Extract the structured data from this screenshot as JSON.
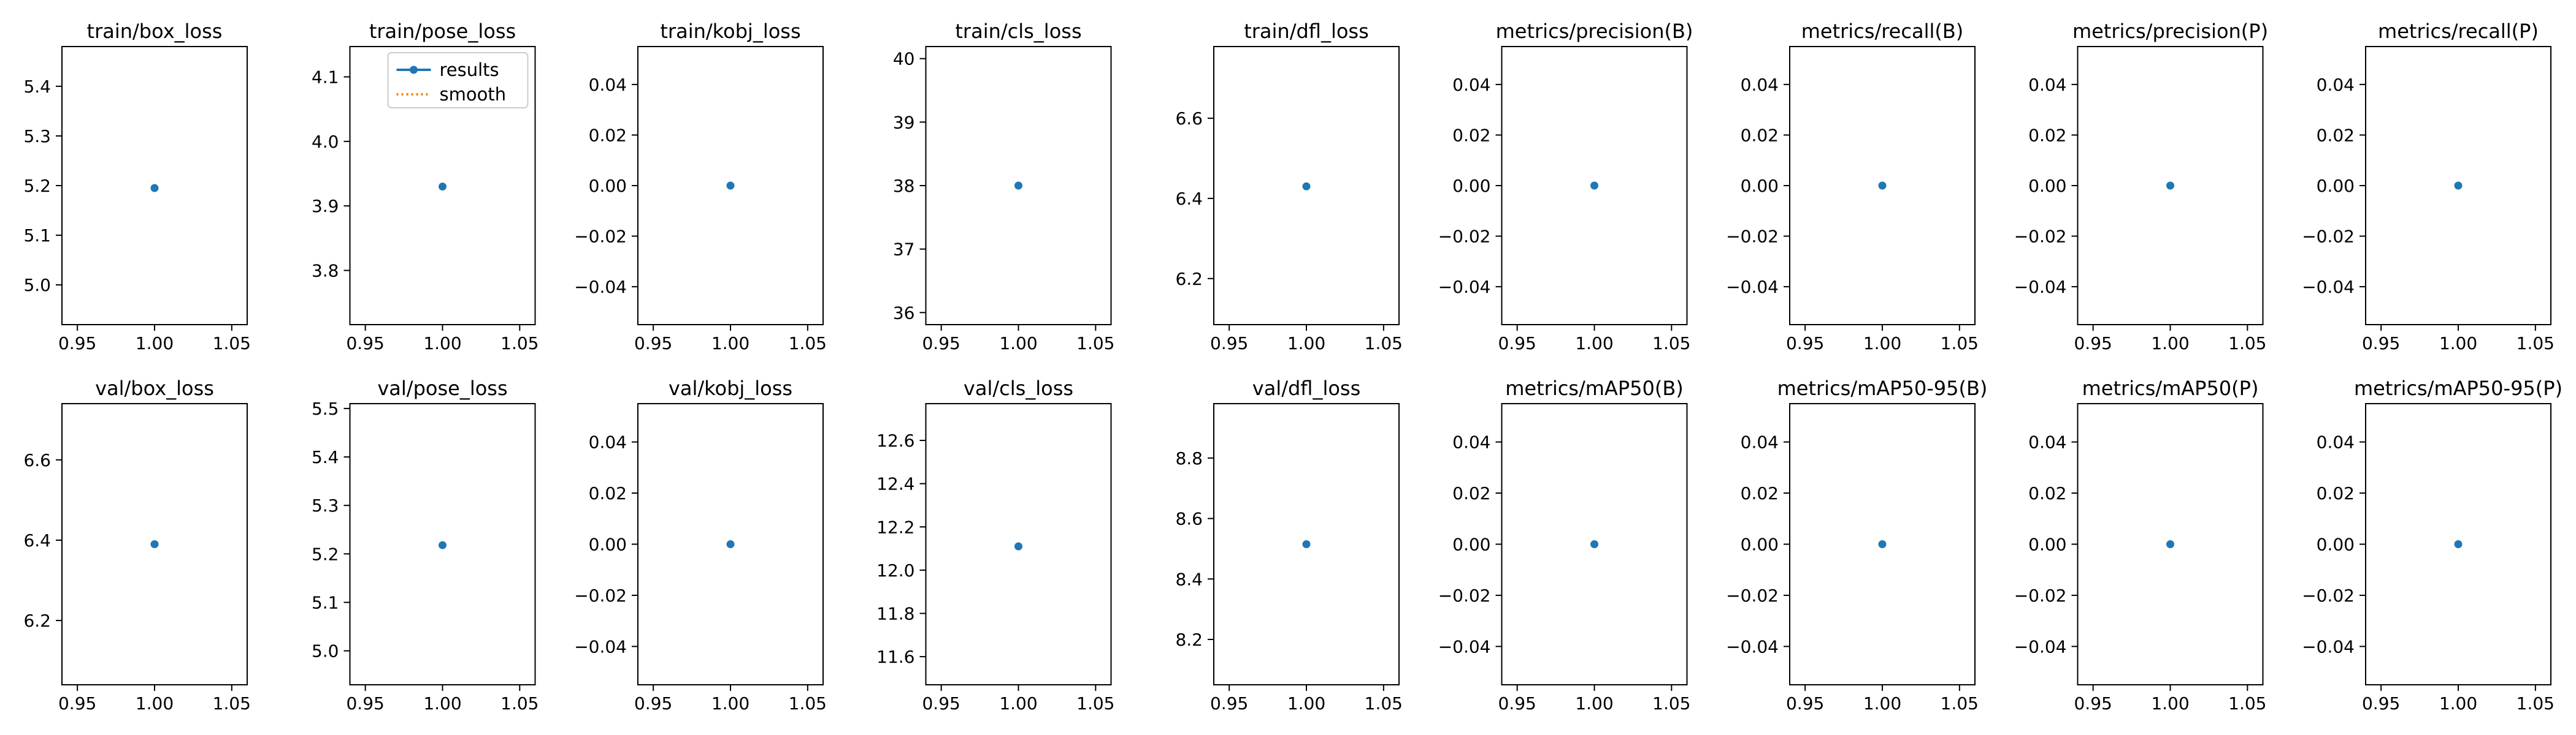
{
  "colors": {
    "results": "#1f77b4",
    "smooth": "#ff7f0e",
    "axis": "#000000"
  },
  "legend": {
    "placement": "top-right",
    "panel_index": 1,
    "entries": [
      "results",
      "smooth"
    ]
  },
  "chart_data": [
    {
      "type": "scatter",
      "title": "train/box_loss",
      "x": [
        1.0
      ],
      "series": [
        {
          "name": "results",
          "values": [
            5.195
          ]
        }
      ],
      "xlim": [
        0.94,
        1.06
      ],
      "ylim": [
        4.92,
        5.48
      ],
      "xticks": [
        "0.95",
        "1.00",
        "1.05"
      ],
      "yticks": [
        {
          "v": 5.0,
          "label": "5.0"
        },
        {
          "v": 5.1,
          "label": "5.1"
        },
        {
          "v": 5.2,
          "label": "5.2"
        },
        {
          "v": 5.3,
          "label": "5.3"
        },
        {
          "v": 5.4,
          "label": "5.4"
        }
      ]
    },
    {
      "type": "scatter",
      "title": "train/pose_loss",
      "x": [
        1.0
      ],
      "series": [
        {
          "name": "results",
          "values": [
            3.93
          ]
        }
      ],
      "xlim": [
        0.94,
        1.06
      ],
      "ylim": [
        3.716,
        4.147
      ],
      "xticks": [
        "0.95",
        "1.00",
        "1.05"
      ],
      "yticks": [
        {
          "v": 3.8,
          "label": "3.8"
        },
        {
          "v": 3.9,
          "label": "3.9"
        },
        {
          "v": 4.0,
          "label": "4.0"
        },
        {
          "v": 4.1,
          "label": "4.1"
        }
      ]
    },
    {
      "type": "scatter",
      "title": "train/kobj_loss",
      "x": [
        1.0
      ],
      "series": [
        {
          "name": "results",
          "values": [
            0.0
          ]
        }
      ],
      "xlim": [
        0.94,
        1.06
      ],
      "ylim": [
        -0.055,
        0.055
      ],
      "xticks": [
        "0.95",
        "1.00",
        "1.05"
      ],
      "yticks": [
        {
          "v": -0.04,
          "label": "−0.04"
        },
        {
          "v": -0.02,
          "label": "−0.02"
        },
        {
          "v": 0.0,
          "label": "0.00"
        },
        {
          "v": 0.02,
          "label": "0.02"
        },
        {
          "v": 0.04,
          "label": "0.04"
        }
      ]
    },
    {
      "type": "scatter",
      "title": "train/cls_loss",
      "x": [
        1.0
      ],
      "series": [
        {
          "name": "results",
          "values": [
            38.0
          ]
        }
      ],
      "xlim": [
        0.94,
        1.06
      ],
      "ylim": [
        35.81,
        40.19
      ],
      "xticks": [
        "0.95",
        "1.00",
        "1.05"
      ],
      "yticks": [
        {
          "v": 36,
          "label": "36"
        },
        {
          "v": 37,
          "label": "37"
        },
        {
          "v": 38,
          "label": "38"
        },
        {
          "v": 39,
          "label": "39"
        },
        {
          "v": 40,
          "label": "40"
        }
      ]
    },
    {
      "type": "scatter",
      "title": "train/dfl_loss",
      "x": [
        1.0
      ],
      "series": [
        {
          "name": "results",
          "values": [
            6.43
          ]
        }
      ],
      "xlim": [
        0.94,
        1.06
      ],
      "ylim": [
        6.085,
        6.779
      ],
      "xticks": [
        "0.95",
        "1.00",
        "1.05"
      ],
      "yticks": [
        {
          "v": 6.2,
          "label": "6.2"
        },
        {
          "v": 6.4,
          "label": "6.4"
        },
        {
          "v": 6.6,
          "label": "6.6"
        }
      ]
    },
    {
      "type": "scatter",
      "title": "metrics/precision(B)",
      "x": [
        1.0
      ],
      "series": [
        {
          "name": "results",
          "values": [
            0.0
          ]
        }
      ],
      "xlim": [
        0.94,
        1.06
      ],
      "ylim": [
        -0.055,
        0.055
      ],
      "xticks": [
        "0.95",
        "1.00",
        "1.05"
      ],
      "yticks": [
        {
          "v": -0.04,
          "label": "−0.04"
        },
        {
          "v": -0.02,
          "label": "−0.02"
        },
        {
          "v": 0.0,
          "label": "0.00"
        },
        {
          "v": 0.02,
          "label": "0.02"
        },
        {
          "v": 0.04,
          "label": "0.04"
        }
      ]
    },
    {
      "type": "scatter",
      "title": "metrics/recall(B)",
      "x": [
        1.0
      ],
      "series": [
        {
          "name": "results",
          "values": [
            0.0
          ]
        }
      ],
      "xlim": [
        0.94,
        1.06
      ],
      "ylim": [
        -0.055,
        0.055
      ],
      "xticks": [
        "0.95",
        "1.00",
        "1.05"
      ],
      "yticks": [
        {
          "v": -0.04,
          "label": "−0.04"
        },
        {
          "v": -0.02,
          "label": "−0.02"
        },
        {
          "v": 0.0,
          "label": "0.00"
        },
        {
          "v": 0.02,
          "label": "0.02"
        },
        {
          "v": 0.04,
          "label": "0.04"
        }
      ]
    },
    {
      "type": "scatter",
      "title": "metrics/precision(P)",
      "x": [
        1.0
      ],
      "series": [
        {
          "name": "results",
          "values": [
            0.0
          ]
        }
      ],
      "xlim": [
        0.94,
        1.06
      ],
      "ylim": [
        -0.055,
        0.055
      ],
      "xticks": [
        "0.95",
        "1.00",
        "1.05"
      ],
      "yticks": [
        {
          "v": -0.04,
          "label": "−0.04"
        },
        {
          "v": -0.02,
          "label": "−0.02"
        },
        {
          "v": 0.0,
          "label": "0.00"
        },
        {
          "v": 0.02,
          "label": "0.02"
        },
        {
          "v": 0.04,
          "label": "0.04"
        }
      ]
    },
    {
      "type": "scatter",
      "title": "metrics/recall(P)",
      "x": [
        1.0
      ],
      "series": [
        {
          "name": "results",
          "values": [
            0.0
          ]
        }
      ],
      "xlim": [
        0.94,
        1.06
      ],
      "ylim": [
        -0.055,
        0.055
      ],
      "xticks": [
        "0.95",
        "1.00",
        "1.05"
      ],
      "yticks": [
        {
          "v": -0.04,
          "label": "−0.04"
        },
        {
          "v": -0.02,
          "label": "−0.02"
        },
        {
          "v": 0.0,
          "label": "0.00"
        },
        {
          "v": 0.02,
          "label": "0.02"
        },
        {
          "v": 0.04,
          "label": "0.04"
        }
      ]
    },
    {
      "type": "scatter",
      "title": "val/box_loss",
      "x": [
        1.0
      ],
      "series": [
        {
          "name": "results",
          "values": [
            6.39
          ]
        }
      ],
      "xlim": [
        0.94,
        1.06
      ],
      "ylim": [
        6.04,
        6.74
      ],
      "xticks": [
        "0.95",
        "1.00",
        "1.05"
      ],
      "yticks": [
        {
          "v": 6.2,
          "label": "6.2"
        },
        {
          "v": 6.4,
          "label": "6.4"
        },
        {
          "v": 6.6,
          "label": "6.6"
        }
      ]
    },
    {
      "type": "scatter",
      "title": "val/pose_loss",
      "x": [
        1.0
      ],
      "series": [
        {
          "name": "results",
          "values": [
            5.218
          ]
        }
      ],
      "xlim": [
        0.94,
        1.06
      ],
      "ylim": [
        4.93,
        5.51
      ],
      "xticks": [
        "0.95",
        "1.00",
        "1.05"
      ],
      "yticks": [
        {
          "v": 5.0,
          "label": "5.0"
        },
        {
          "v": 5.1,
          "label": "5.1"
        },
        {
          "v": 5.2,
          "label": "5.2"
        },
        {
          "v": 5.3,
          "label": "5.3"
        },
        {
          "v": 5.4,
          "label": "5.4"
        },
        {
          "v": 5.5,
          "label": "5.5"
        }
      ]
    },
    {
      "type": "scatter",
      "title": "val/kobj_loss",
      "x": [
        1.0
      ],
      "series": [
        {
          "name": "results",
          "values": [
            0.0
          ]
        }
      ],
      "xlim": [
        0.94,
        1.06
      ],
      "ylim": [
        -0.055,
        0.055
      ],
      "xticks": [
        "0.95",
        "1.00",
        "1.05"
      ],
      "yticks": [
        {
          "v": -0.04,
          "label": "−0.04"
        },
        {
          "v": -0.02,
          "label": "−0.02"
        },
        {
          "v": 0.0,
          "label": "0.00"
        },
        {
          "v": 0.02,
          "label": "0.02"
        },
        {
          "v": 0.04,
          "label": "0.04"
        }
      ]
    },
    {
      "type": "scatter",
      "title": "val/cls_loss",
      "x": [
        1.0
      ],
      "series": [
        {
          "name": "results",
          "values": [
            12.11
          ]
        }
      ],
      "xlim": [
        0.94,
        1.06
      ],
      "ylim": [
        11.47,
        12.77
      ],
      "xticks": [
        "0.95",
        "1.00",
        "1.05"
      ],
      "yticks": [
        {
          "v": 11.6,
          "label": "11.6"
        },
        {
          "v": 11.8,
          "label": "11.8"
        },
        {
          "v": 12.0,
          "label": "12.0"
        },
        {
          "v": 12.2,
          "label": "12.2"
        },
        {
          "v": 12.4,
          "label": "12.4"
        },
        {
          "v": 12.6,
          "label": "12.6"
        }
      ]
    },
    {
      "type": "scatter",
      "title": "val/dfl_loss",
      "x": [
        1.0
      ],
      "series": [
        {
          "name": "results",
          "values": [
            8.515
          ]
        }
      ],
      "xlim": [
        0.94,
        1.06
      ],
      "ylim": [
        8.05,
        8.98
      ],
      "xticks": [
        "0.95",
        "1.00",
        "1.05"
      ],
      "yticks": [
        {
          "v": 8.2,
          "label": "8.2"
        },
        {
          "v": 8.4,
          "label": "8.4"
        },
        {
          "v": 8.6,
          "label": "8.6"
        },
        {
          "v": 8.8,
          "label": "8.8"
        }
      ]
    },
    {
      "type": "scatter",
      "title": "metrics/mAP50(B)",
      "x": [
        1.0
      ],
      "series": [
        {
          "name": "results",
          "values": [
            0.0
          ]
        }
      ],
      "xlim": [
        0.94,
        1.06
      ],
      "ylim": [
        -0.055,
        0.055
      ],
      "xticks": [
        "0.95",
        "1.00",
        "1.05"
      ],
      "yticks": [
        {
          "v": -0.04,
          "label": "−0.04"
        },
        {
          "v": -0.02,
          "label": "−0.02"
        },
        {
          "v": 0.0,
          "label": "0.00"
        },
        {
          "v": 0.02,
          "label": "0.02"
        },
        {
          "v": 0.04,
          "label": "0.04"
        }
      ]
    },
    {
      "type": "scatter",
      "title": "metrics/mAP50-95(B)",
      "x": [
        1.0
      ],
      "series": [
        {
          "name": "results",
          "values": [
            0.0
          ]
        }
      ],
      "xlim": [
        0.94,
        1.06
      ],
      "ylim": [
        -0.055,
        0.055
      ],
      "xticks": [
        "0.95",
        "1.00",
        "1.05"
      ],
      "yticks": [
        {
          "v": -0.04,
          "label": "−0.04"
        },
        {
          "v": -0.02,
          "label": "−0.02"
        },
        {
          "v": 0.0,
          "label": "0.00"
        },
        {
          "v": 0.02,
          "label": "0.02"
        },
        {
          "v": 0.04,
          "label": "0.04"
        }
      ]
    },
    {
      "type": "scatter",
      "title": "metrics/mAP50(P)",
      "x": [
        1.0
      ],
      "series": [
        {
          "name": "results",
          "values": [
            0.0
          ]
        }
      ],
      "xlim": [
        0.94,
        1.06
      ],
      "ylim": [
        -0.055,
        0.055
      ],
      "xticks": [
        "0.95",
        "1.00",
        "1.05"
      ],
      "yticks": [
        {
          "v": -0.04,
          "label": "−0.04"
        },
        {
          "v": -0.02,
          "label": "−0.02"
        },
        {
          "v": 0.0,
          "label": "0.00"
        },
        {
          "v": 0.02,
          "label": "0.02"
        },
        {
          "v": 0.04,
          "label": "0.04"
        }
      ]
    },
    {
      "type": "scatter",
      "title": "metrics/mAP50-95(P)",
      "x": [
        1.0
      ],
      "series": [
        {
          "name": "results",
          "values": [
            0.0
          ]
        }
      ],
      "xlim": [
        0.94,
        1.06
      ],
      "ylim": [
        -0.055,
        0.055
      ],
      "xticks": [
        "0.95",
        "1.00",
        "1.05"
      ],
      "yticks": [
        {
          "v": -0.04,
          "label": "−0.04"
        },
        {
          "v": -0.02,
          "label": "−0.02"
        },
        {
          "v": 0.0,
          "label": "0.00"
        },
        {
          "v": 0.02,
          "label": "0.02"
        },
        {
          "v": 0.04,
          "label": "0.04"
        }
      ]
    }
  ]
}
